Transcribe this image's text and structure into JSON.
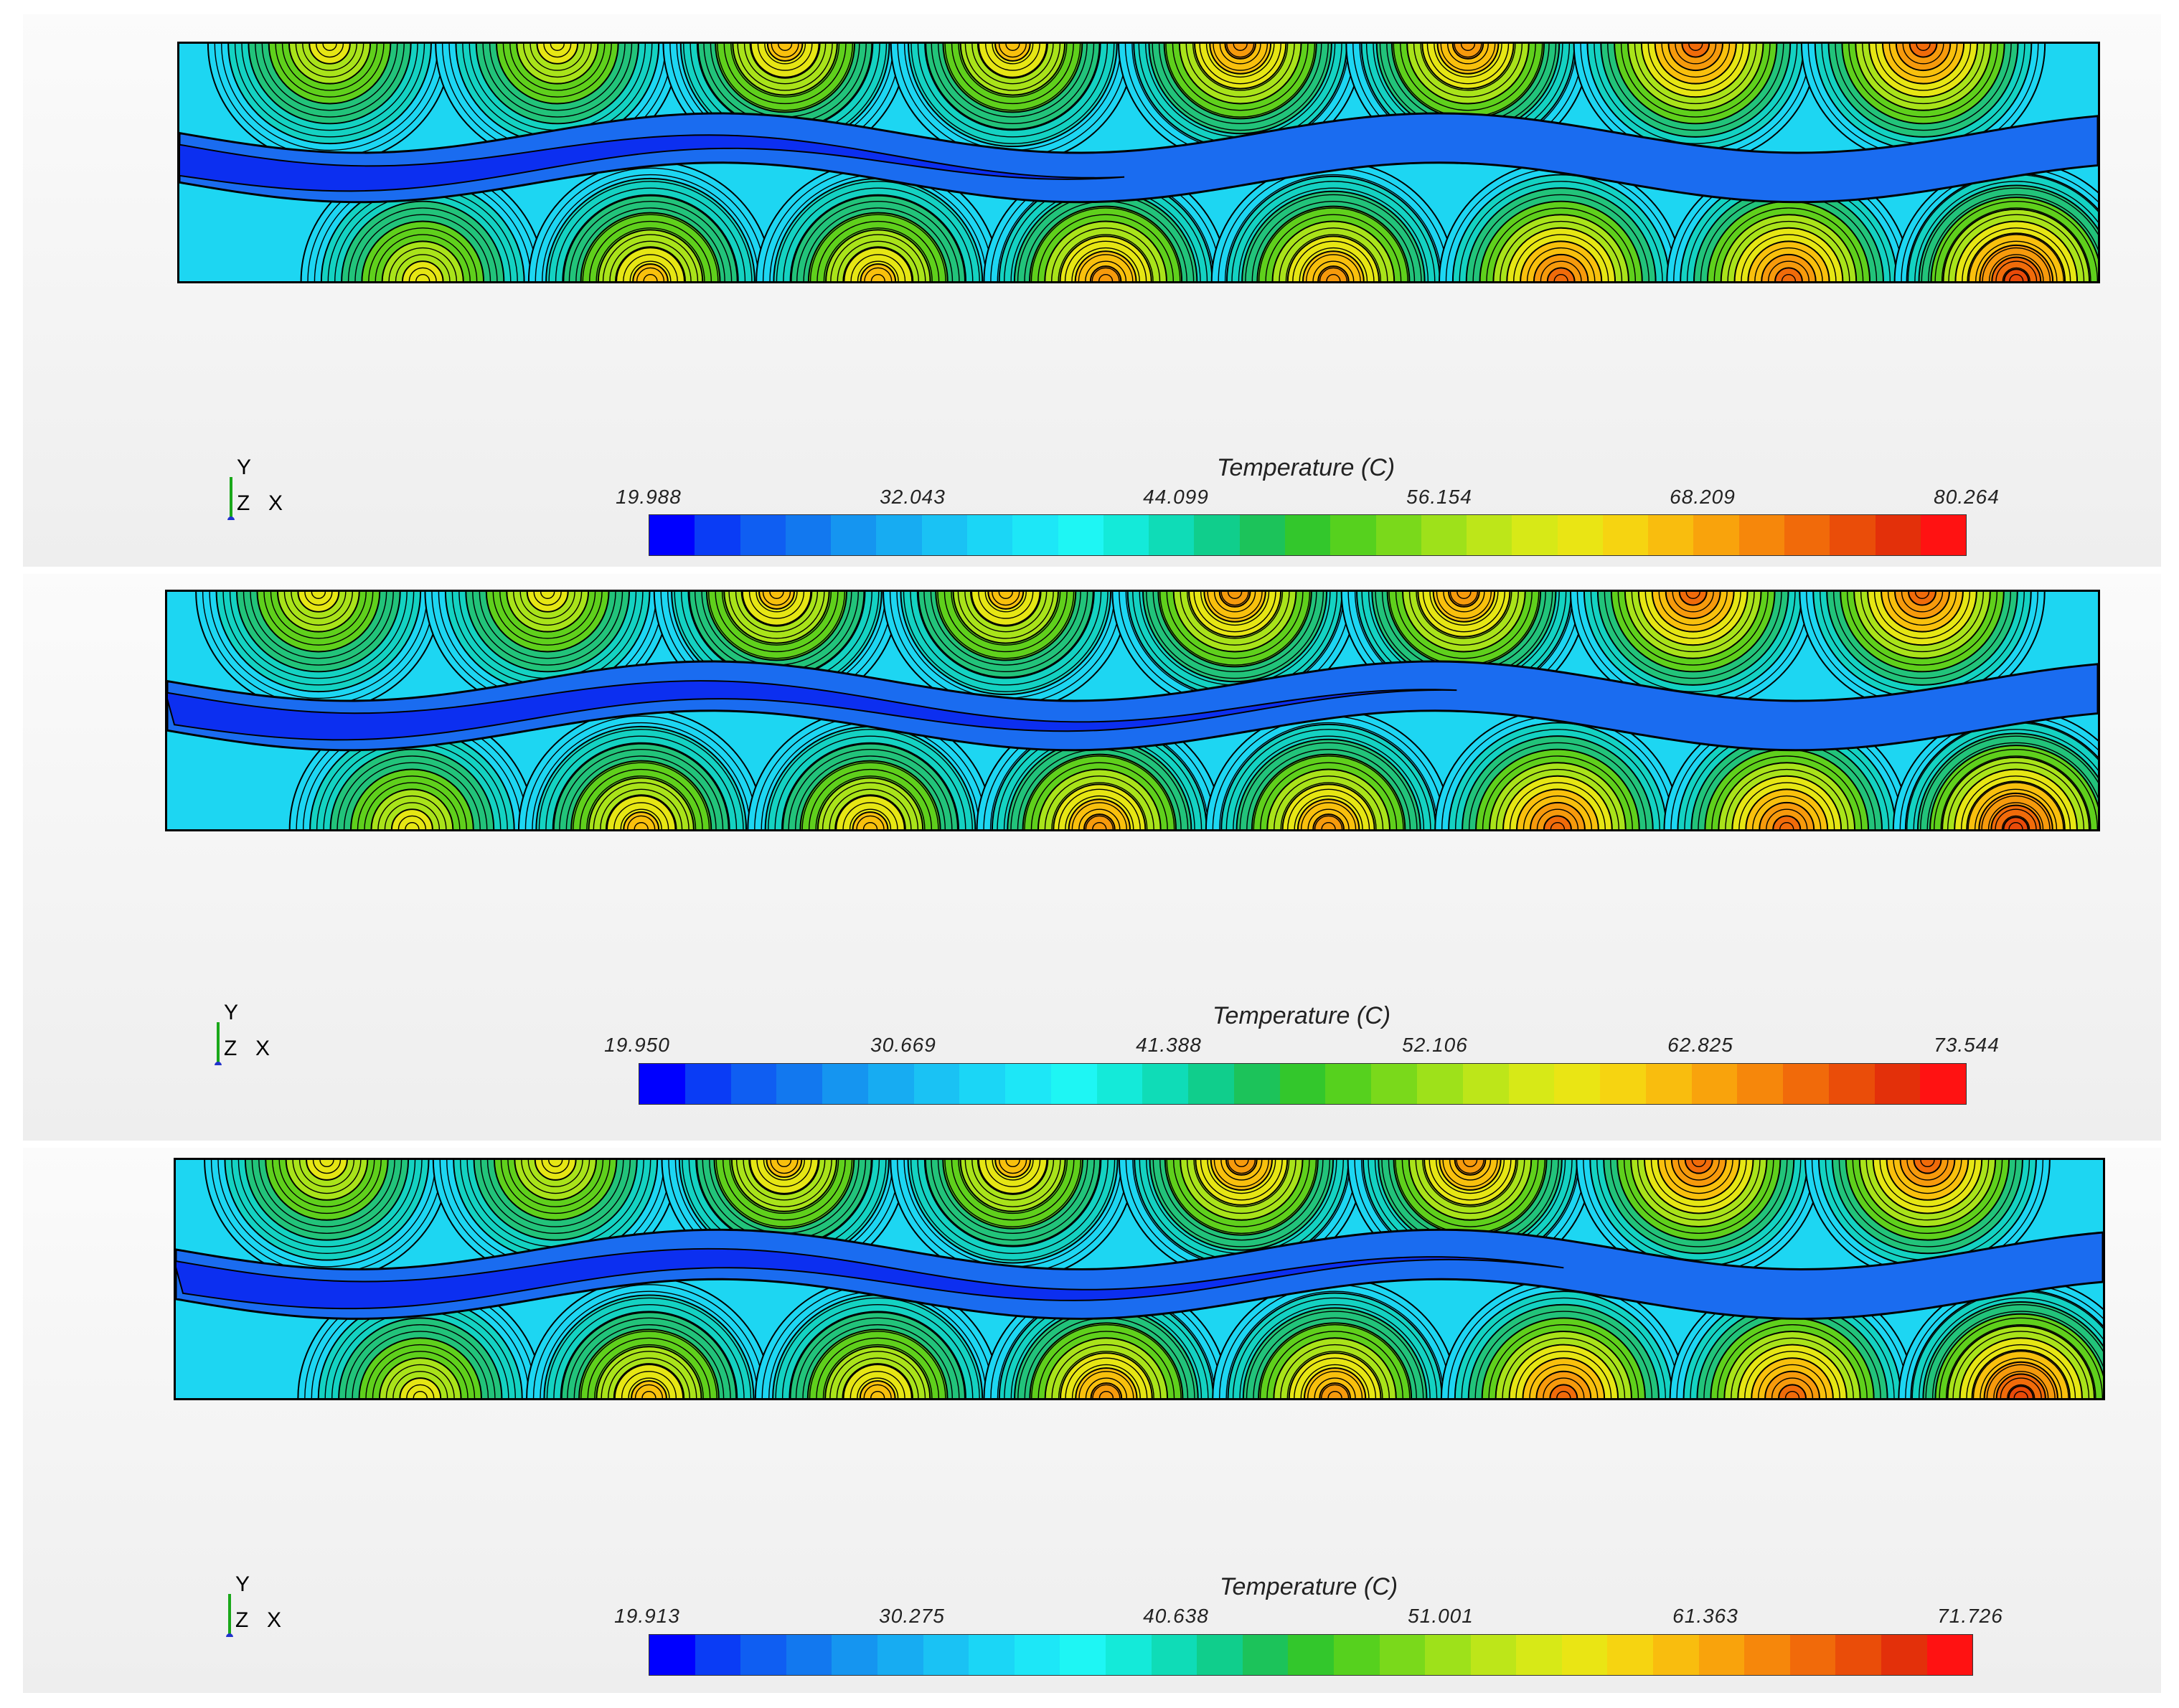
{
  "colormap": [
    "#0000ff",
    "#0a3cf5",
    "#0f5ef2",
    "#1278ef",
    "#1595f0",
    "#17acf2",
    "#1ac2f4",
    "#1bd6f6",
    "#1de7f7",
    "#1ef6f4",
    "#14ead9",
    "#0fdcb7",
    "#10ce8c",
    "#1cc35a",
    "#33c72c",
    "#56d11e",
    "#7ad91b",
    "#9ee11a",
    "#bde619",
    "#d7e917",
    "#eae514",
    "#f6d411",
    "#f9bd0e",
    "#f9a30c",
    "#f6870b",
    "#f16a0a",
    "#ea4d09",
    "#e3300a",
    "#ff1212"
  ],
  "panels": [
    {
      "title": "Temperature (C)",
      "ticks": [
        "19.988",
        "32.043",
        "44.099",
        "56.154",
        "68.209",
        "80.264"
      ],
      "triad": {
        "y": "Y",
        "z": "Z",
        "x": "X"
      },
      "max_temp": 80.264
    },
    {
      "title": "Temperature (C)",
      "ticks": [
        "19.950",
        "30.669",
        "41.388",
        "52.106",
        "62.825",
        "73.544"
      ],
      "triad": {
        "y": "Y",
        "z": "Z",
        "x": "X"
      },
      "max_temp": 73.544
    },
    {
      "title": "Temperature (C)",
      "ticks": [
        "19.913",
        "30.275",
        "40.638",
        "51.001",
        "61.363",
        "71.726"
      ],
      "triad": {
        "y": "Y",
        "z": "Z",
        "x": "X"
      },
      "max_temp": 71.726
    }
  ]
}
